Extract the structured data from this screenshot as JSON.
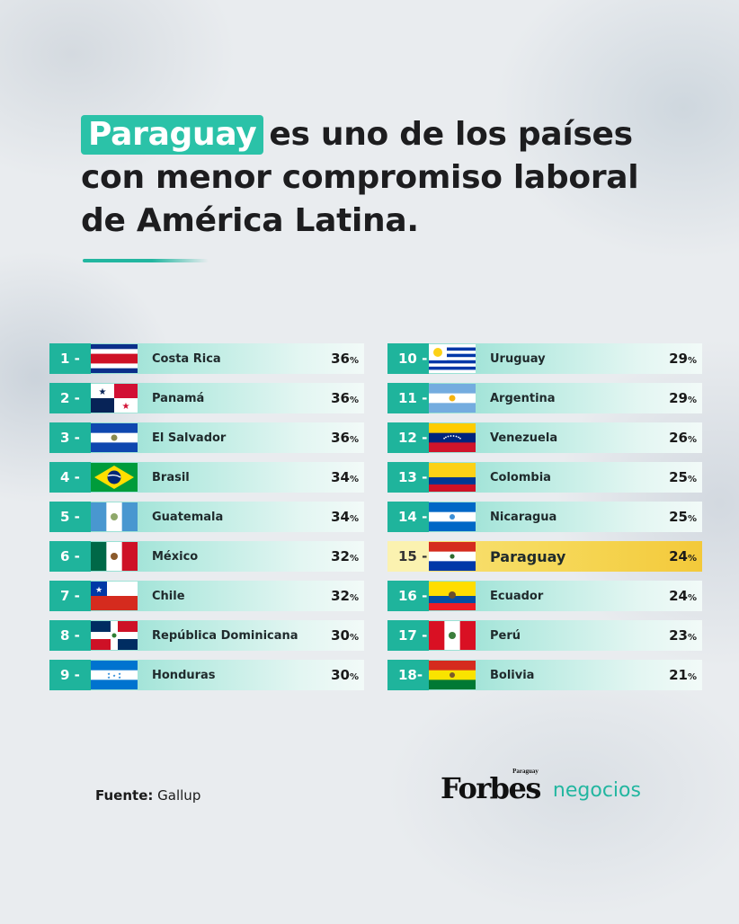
{
  "title": {
    "highlight": "Paraguay",
    "line1_rest": "es uno de los países",
    "line2": "con menor compromiso laboral",
    "line3": "de América Latina."
  },
  "source": {
    "label": "Fuente:",
    "value": "Gallup"
  },
  "brand": {
    "forbes": "Forbes",
    "forbes_sub": "Paraguay",
    "negocios": "negocios"
  },
  "colors": {
    "teal": "#1fb49c",
    "highlight_yellow": "#f6d95a",
    "text_dark": "#1d1d1f"
  },
  "chart_data": {
    "type": "table",
    "unit": "%",
    "rows": [
      {
        "rank": "1 -",
        "country": "Costa Rica",
        "value": 36,
        "pct": "36",
        "flag": "costa-rica"
      },
      {
        "rank": "2 -",
        "country": "Panamá",
        "value": 36,
        "pct": "36",
        "flag": "panama"
      },
      {
        "rank": "3 -",
        "country": "El Salvador",
        "value": 36,
        "pct": "36",
        "flag": "el-salvador"
      },
      {
        "rank": "4 -",
        "country": "Brasil",
        "value": 34,
        "pct": "34",
        "flag": "brasil"
      },
      {
        "rank": "5 -",
        "country": "Guatemala",
        "value": 34,
        "pct": "34",
        "flag": "guatemala"
      },
      {
        "rank": "6 -",
        "country": "México",
        "value": 32,
        "pct": "32",
        "flag": "mexico"
      },
      {
        "rank": "7 -",
        "country": "Chile",
        "value": 32,
        "pct": "32",
        "flag": "chile"
      },
      {
        "rank": "8 -",
        "country": "República Dominicana",
        "value": 30,
        "pct": "30",
        "flag": "republica-dominicana"
      },
      {
        "rank": "9 -",
        "country": "Honduras",
        "value": 30,
        "pct": "30",
        "flag": "honduras"
      },
      {
        "rank": "10 -",
        "country": "Uruguay",
        "value": 29,
        "pct": "29",
        "flag": "uruguay"
      },
      {
        "rank": "11 -",
        "country": "Argentina",
        "value": 29,
        "pct": "29",
        "flag": "argentina"
      },
      {
        "rank": "12 -",
        "country": "Venezuela",
        "value": 26,
        "pct": "26",
        "flag": "venezuela"
      },
      {
        "rank": "13 -",
        "country": "Colombia",
        "value": 25,
        "pct": "25",
        "flag": "colombia"
      },
      {
        "rank": "14 -",
        "country": "Nicaragua",
        "value": 25,
        "pct": "25",
        "flag": "nicaragua"
      },
      {
        "rank": "15 -",
        "country": "Paraguay",
        "value": 24,
        "pct": "24",
        "flag": "paraguay",
        "highlighted": true
      },
      {
        "rank": "16 -",
        "country": "Ecuador",
        "value": 24,
        "pct": "24",
        "flag": "ecuador"
      },
      {
        "rank": "17 -",
        "country": "Perú",
        "value": 23,
        "pct": "23",
        "flag": "peru"
      },
      {
        "rank": "18-",
        "country": "Bolivia",
        "value": 21,
        "pct": "21",
        "flag": "bolivia"
      }
    ]
  }
}
